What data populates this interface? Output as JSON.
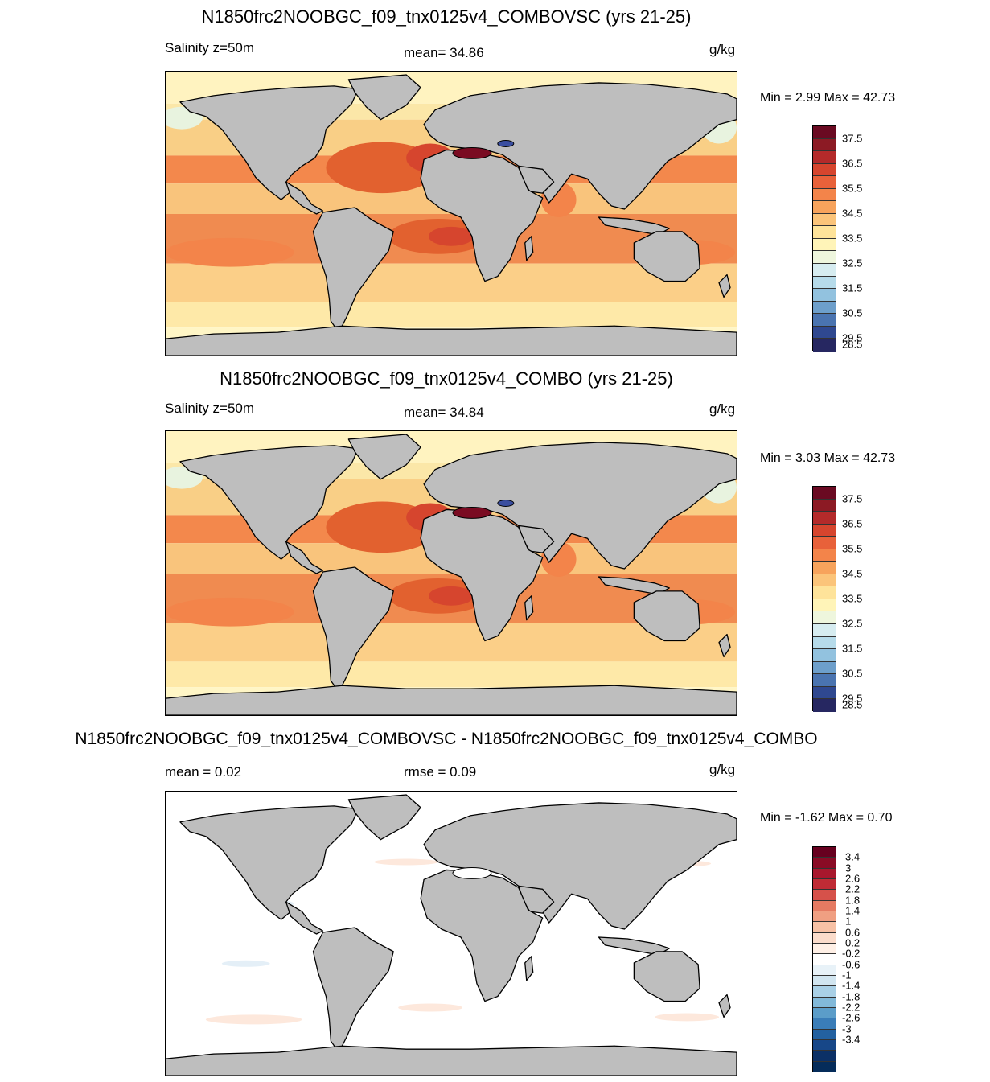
{
  "panels": [
    {
      "title": "N1850frc2NOOBGC_f09_tnx0125v4_COMBOVSC (yrs 21-25)",
      "left_label": "Salinity z=50m",
      "center_label": "mean=  34.86",
      "units": "g/kg",
      "minmax": "Min =   2.99 Max =  42.73",
      "colorbar": {
        "colors": [
          "#6a0a22",
          "#8c1a24",
          "#b42a2a",
          "#d6452e",
          "#e8613a",
          "#f3844a",
          "#f7a35c",
          "#fbc47a",
          "#fee39a",
          "#fff4b8",
          "#eef6dd",
          "#d6ecf0",
          "#b6dbea",
          "#92c2df",
          "#6d9fcb",
          "#4a74b0",
          "#2f4890",
          "#262761"
        ],
        "tick_labels": [
          "37.5",
          "36.5",
          "35.5",
          "34.5",
          "33.5",
          "32.5",
          "31.5",
          "30.5",
          "29.5",
          "28.5"
        ],
        "tick_boundaries": [
          1,
          3,
          5,
          7,
          9,
          11,
          13,
          15,
          17,
          18
        ]
      },
      "map_style": "salinity"
    },
    {
      "title": "N1850frc2NOOBGC_f09_tnx0125v4_COMBO (yrs 21-25)",
      "left_label": "Salinity z=50m",
      "center_label": "mean=  34.84",
      "units": "g/kg",
      "minmax": "Min =   3.03 Max =  42.73",
      "colorbar": {
        "colors": [
          "#6a0a22",
          "#8c1a24",
          "#b42a2a",
          "#d6452e",
          "#e8613a",
          "#f3844a",
          "#f7a35c",
          "#fbc47a",
          "#fee39a",
          "#fff4b8",
          "#eef6dd",
          "#d6ecf0",
          "#b6dbea",
          "#92c2df",
          "#6d9fcb",
          "#4a74b0",
          "#2f4890",
          "#262761"
        ],
        "tick_labels": [
          "37.5",
          "36.5",
          "35.5",
          "34.5",
          "33.5",
          "32.5",
          "31.5",
          "30.5",
          "29.5",
          "28.5"
        ],
        "tick_boundaries": [
          1,
          3,
          5,
          7,
          9,
          11,
          13,
          15,
          17,
          18
        ]
      },
      "map_style": "salinity"
    },
    {
      "title": "N1850frc2NOOBGC_f09_tnx0125v4_COMBOVSC - N1850frc2NOOBGC_f09_tnx0125v4_COMBO",
      "left_label": "mean =   0.02",
      "center_label": "rmse =   0.09",
      "units": "g/kg",
      "minmax": "Min =  -1.62 Max =   0.70",
      "colorbar": {
        "colors": [
          "#67001f",
          "#8a0b25",
          "#a8172d",
          "#c02b35",
          "#d6514a",
          "#e57a62",
          "#f09f82",
          "#f7c1a5",
          "#fbdccb",
          "#fff0e6",
          "#ffffff",
          "#e8f2f8",
          "#d1e5f0",
          "#a9d0e6",
          "#82b9d9",
          "#5b9dc9",
          "#3a7db8",
          "#2361a0",
          "#174788",
          "#0b3066",
          "#052c5a"
        ],
        "tick_labels": [
          "3.4",
          "3",
          "2.6",
          "2.2",
          "1.8",
          "1.4",
          "1",
          "0.6",
          "0.2",
          "-0.2",
          "-0.6",
          "-1",
          "-1.4",
          "-1.8",
          "-2.2",
          "-2.6",
          "-3",
          "-3.4"
        ],
        "tick_boundaries": [
          1,
          2,
          3,
          4,
          5,
          6,
          7,
          8,
          9,
          10,
          11,
          12,
          13,
          14,
          15,
          16,
          17,
          18
        ]
      },
      "map_style": "difference"
    }
  ]
}
